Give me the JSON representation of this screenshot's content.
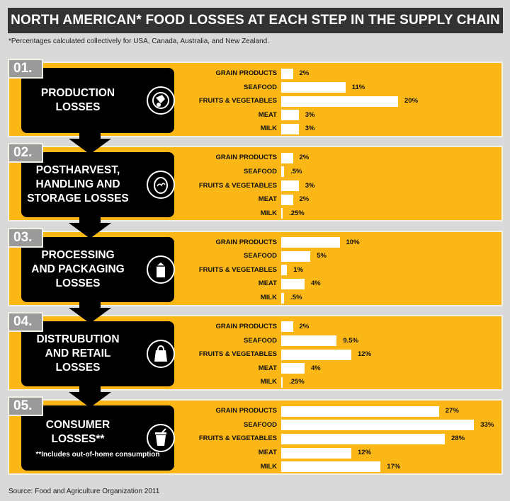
{
  "title": "NORTH AMERICAN* FOOD LOSSES AT EACH STEP IN THE SUPPLY CHAIN",
  "footnote": "*Percentages calculated collectively for USA, Canada, Australia, and New Zealand.",
  "source": "Source: Food and Agriculture Organization 2011",
  "colors": {
    "panel": "#fbb715",
    "box": "#000000",
    "bar": "#ffffff",
    "header": "#333333",
    "tab": "#9a9a9a"
  },
  "stages": [
    {
      "num": "01.",
      "title": "PRODUCTION\nLOSSES",
      "note": "",
      "icon": "tractor-icon"
    },
    {
      "num": "02.",
      "title": "POSTHARVEST,\nHANDLING AND\nSTORAGE LOSSES",
      "note": "",
      "icon": "egg-icon"
    },
    {
      "num": "03.",
      "title": "PROCESSING\nAND PACKAGING\nLOSSES",
      "note": "",
      "icon": "milk-carton-icon"
    },
    {
      "num": "04.",
      "title": "DISTRUBUTION\nAND RETAIL\nLOSSES",
      "note": "",
      "icon": "shopping-bag-icon"
    },
    {
      "num": "05.",
      "title": "CONSUMER\nLOSSES**",
      "note": "**Includes out-of-home consumption",
      "icon": "trash-can-icon"
    }
  ],
  "chart_data": {
    "type": "bar",
    "orientation": "horizontal",
    "unit": "%",
    "categories": [
      "GRAIN PRODUCTS",
      "SEAFOOD",
      "FRUITS & VEGETABLES",
      "MEAT",
      "MILK"
    ],
    "groups": [
      {
        "stage": "01.",
        "values": [
          2,
          11,
          20,
          3,
          3
        ],
        "labels": [
          "2%",
          "11%",
          "20%",
          "3%",
          "3%"
        ]
      },
      {
        "stage": "02.",
        "values": [
          2,
          0.5,
          3,
          2,
          0.25
        ],
        "labels": [
          "2%",
          ".5%",
          "3%",
          "2%",
          ".25%"
        ]
      },
      {
        "stage": "03.",
        "values": [
          10,
          5,
          1,
          4,
          0.5
        ],
        "labels": [
          "10%",
          "5%",
          "1%",
          "4%",
          ".5%"
        ]
      },
      {
        "stage": "04.",
        "values": [
          2,
          9.5,
          12,
          4,
          0.25
        ],
        "labels": [
          "2%",
          "9.5%",
          "12%",
          "4%",
          ".25%"
        ]
      },
      {
        "stage": "05.",
        "values": [
          27,
          33,
          28,
          12,
          17
        ],
        "labels": [
          "27%",
          "33%",
          "28%",
          "12%",
          "17%"
        ]
      }
    ]
  }
}
